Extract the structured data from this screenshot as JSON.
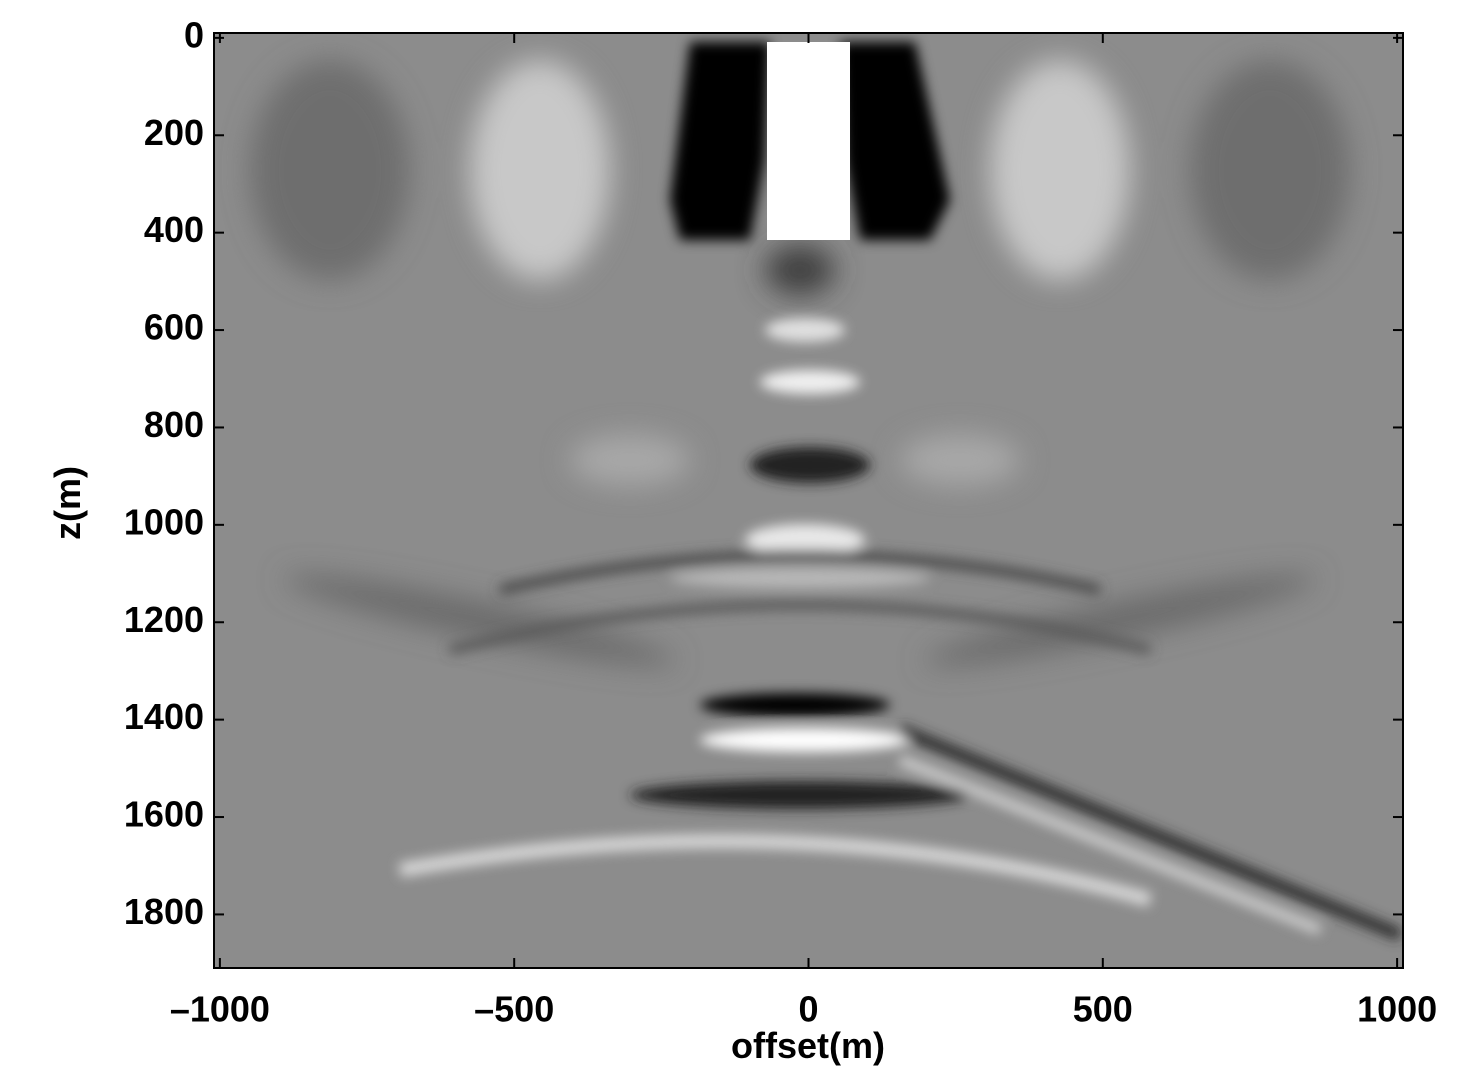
{
  "chart_data": {
    "type": "image",
    "colormap": "gray",
    "xlabel": "offset(m)",
    "ylabel": "z(m)",
    "xlim": [
      -1010,
      1010
    ],
    "ylim": [
      -10,
      1910
    ],
    "y_reversed": true,
    "xticks": [
      {
        "value": -1000,
        "label": "–1000"
      },
      {
        "value": -500,
        "label": "–500"
      },
      0,
      500,
      1000
    ],
    "yticks": [
      0,
      200,
      400,
      600,
      800,
      1000,
      1200,
      1400,
      1600,
      1800
    ]
  }
}
